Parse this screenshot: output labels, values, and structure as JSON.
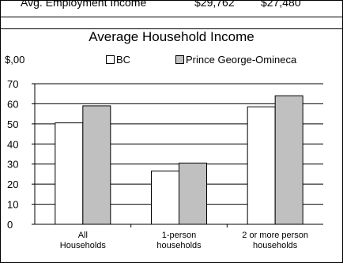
{
  "top_table": {
    "row_label": "Avg. Employment Income",
    "bc_value": "$29,762",
    "region_value": "$27,480"
  },
  "chart_data": {
    "type": "bar",
    "title": "Average Household Income",
    "unit_label": "$,00",
    "categories": [
      "All Households",
      "1-person households",
      "2 or more person households"
    ],
    "category_lines": [
      [
        "All",
        "Households"
      ],
      [
        "1-person",
        "households"
      ],
      [
        "2 or more person",
        "households"
      ]
    ],
    "series": [
      {
        "name": "BC",
        "values": [
          50.5,
          26.5,
          58.5
        ],
        "color": "#ffffff"
      },
      {
        "name": "Prince George-Omineca",
        "values": [
          59,
          30.5,
          64
        ],
        "color": "#c0c0c0"
      }
    ],
    "ylim": [
      0,
      70
    ],
    "yticks": [
      0,
      10,
      20,
      30,
      40,
      50,
      60,
      70
    ],
    "grid": true,
    "legend_position": "top"
  }
}
